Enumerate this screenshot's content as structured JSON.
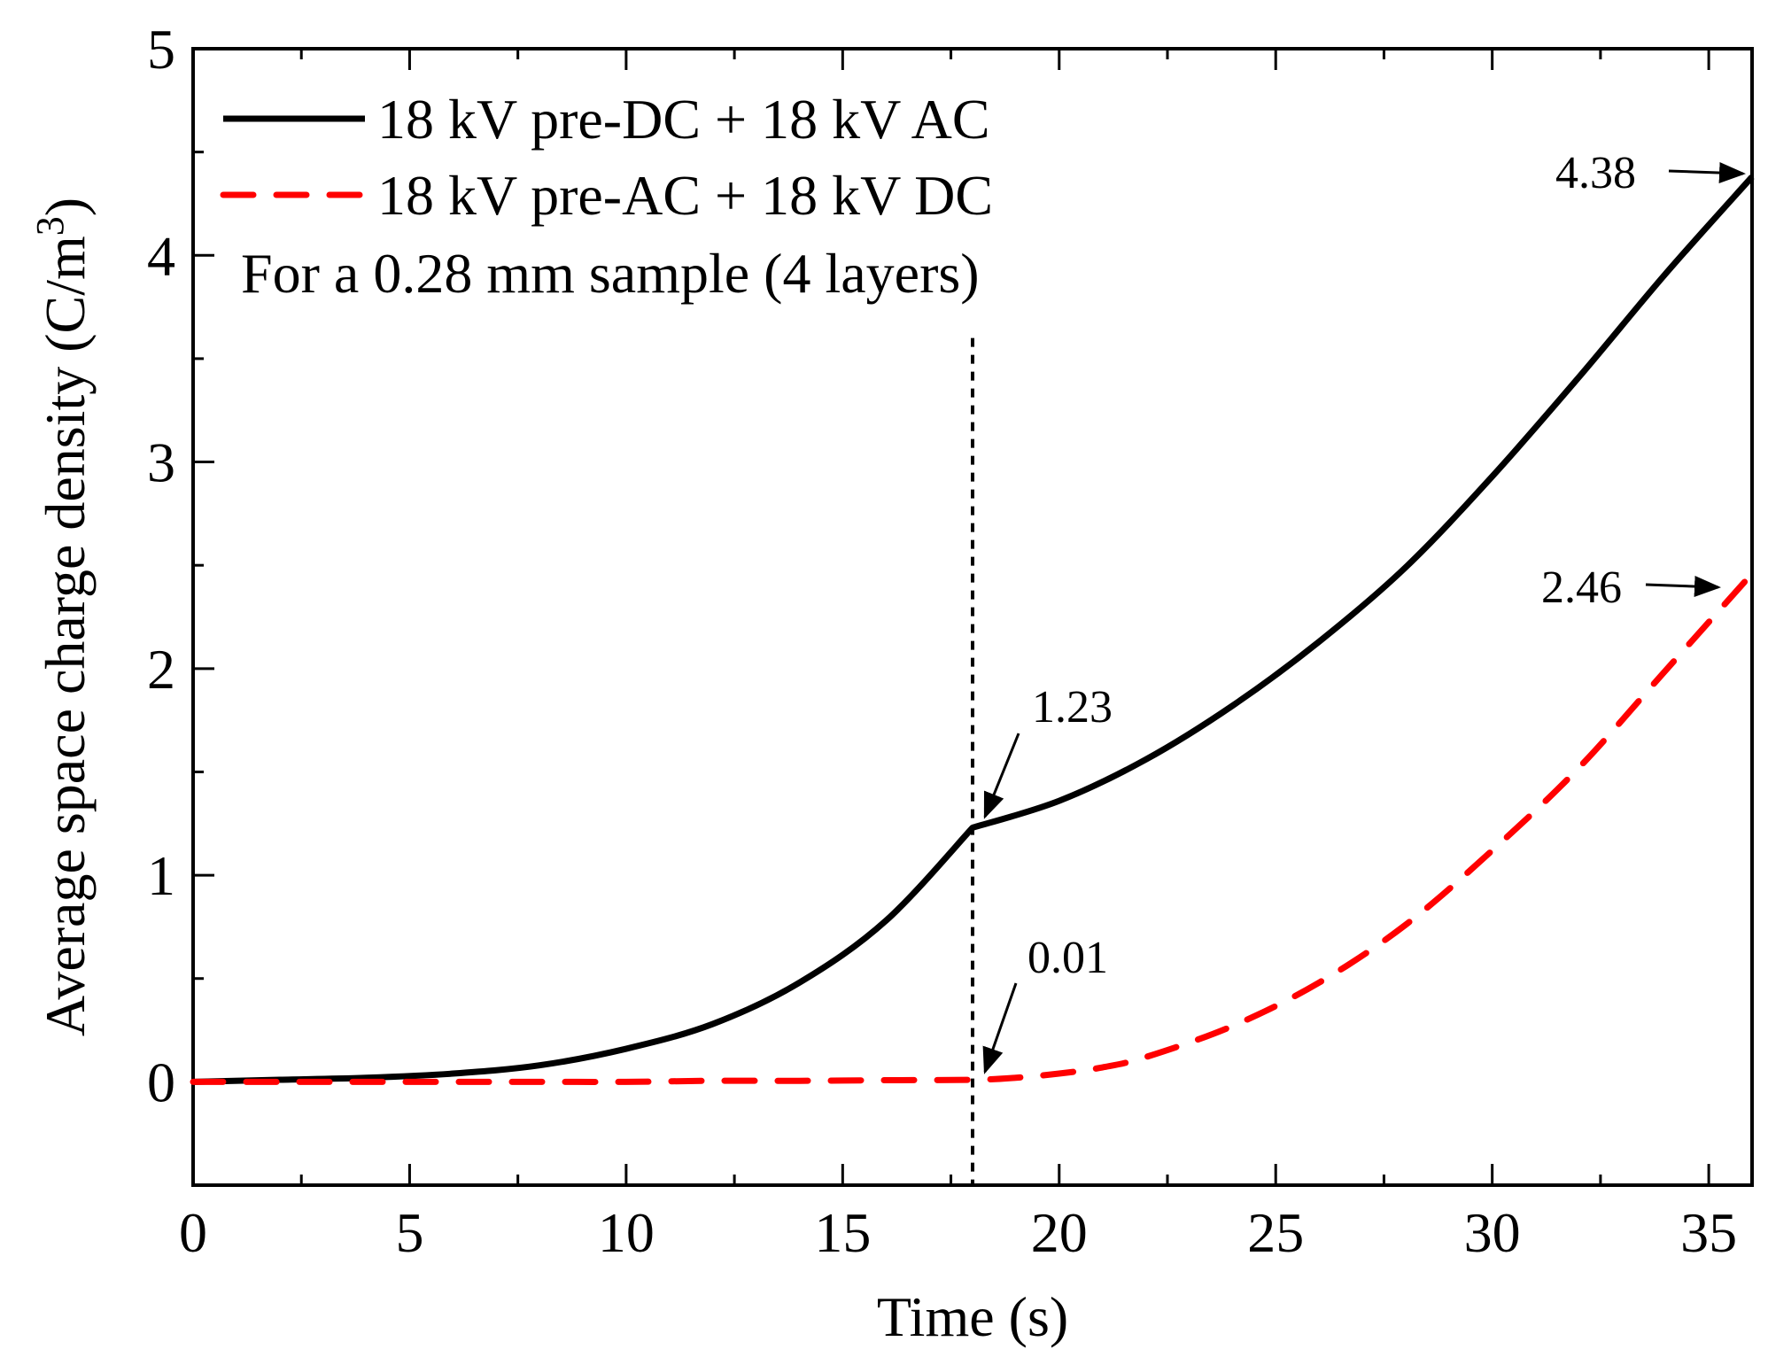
{
  "chart_data": {
    "type": "line",
    "xlabel": "Time (s)",
    "ylabel": "Average space charge density (C/m",
    "ylabel_superscript": "3",
    "ylabel_close": ")",
    "xlim": [
      0,
      36
    ],
    "ylim": [
      -0.5,
      5
    ],
    "xticks": [
      0,
      5,
      10,
      15,
      20,
      25,
      30,
      35
    ],
    "yticks": [
      0,
      1,
      2,
      3,
      4,
      5
    ],
    "legend_position": "top-left",
    "note": "For a 0.28 mm sample (4 layers)",
    "vline_x": 18,
    "series": [
      {
        "name": "18 kV pre-DC + 18 kV AC",
        "color": "#000000",
        "style": "solid",
        "x": [
          0,
          2,
          4,
          6,
          8,
          10,
          12,
          14,
          16,
          18,
          20,
          22,
          24,
          26,
          28,
          30,
          32,
          34,
          36
        ],
        "y": [
          0,
          0.01,
          0.02,
          0.04,
          0.08,
          0.16,
          0.28,
          0.48,
          0.78,
          1.23,
          1.36,
          1.56,
          1.82,
          2.13,
          2.49,
          2.93,
          3.41,
          3.91,
          4.38
        ]
      },
      {
        "name": "18 kV pre-AC + 18 kV DC",
        "color": "#ff0000",
        "style": "dashed",
        "x": [
          0,
          2,
          4,
          6,
          8,
          10,
          12,
          14,
          16,
          18,
          19,
          20,
          21,
          22,
          24,
          26,
          28,
          30,
          32,
          34,
          36
        ],
        "y": [
          0,
          0,
          0,
          0,
          0,
          0,
          0.005,
          0.005,
          0.008,
          0.01,
          0.02,
          0.04,
          0.07,
          0.12,
          0.27,
          0.48,
          0.76,
          1.12,
          1.52,
          1.99,
          2.46
        ]
      }
    ],
    "annotations": [
      {
        "text": "4.38",
        "x": 36,
        "y": 4.38
      },
      {
        "text": "2.46",
        "x": 36,
        "y": 2.46
      },
      {
        "text": "1.23",
        "x": 18,
        "y": 1.23
      },
      {
        "text": "0.01",
        "x": 18,
        "y": 0.01
      }
    ]
  }
}
